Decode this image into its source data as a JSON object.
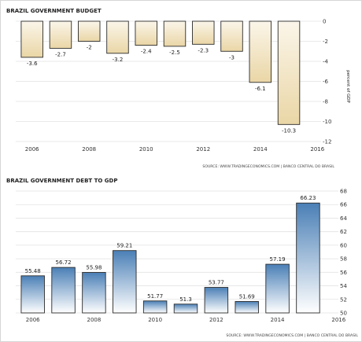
{
  "chart_data": [
    {
      "type": "bar",
      "title": "BRAZIL GOVERNMENT BUDGET",
      "ylabel": "percent of GDP",
      "source": "SOURCE: WWW.TRADINGECONOMICS.COM | BANCO CENTRAL DO BRASIL",
      "categories": [
        "2006",
        "2007",
        "2008",
        "2009",
        "2010",
        "2011",
        "2012",
        "2013",
        "2014",
        "2015"
      ],
      "values": [
        -3.6,
        -2.7,
        -2,
        -3.2,
        -2.4,
        -2.5,
        -2.3,
        -3,
        -6.1,
        -10.3
      ],
      "data_labels": [
        "-3.6",
        "-2.7",
        "-2",
        "-3.2",
        "-2.4",
        "-2.5",
        "-2.3",
        "-3",
        "-6.1",
        "-10.3"
      ],
      "x_ticks": [
        "2006",
        "2008",
        "2010",
        "2012",
        "2014",
        "2016"
      ],
      "y_ticks": [
        "0",
        "-2",
        "-4",
        "-6",
        "-8",
        "-10",
        "-12"
      ],
      "ylim": [
        -12,
        0
      ],
      "grid": true,
      "colors": {
        "bar_fill_top": "#fbf6ea",
        "bar_fill_bottom": "#ead6a6",
        "bar_stroke": "#2b2b2b"
      }
    },
    {
      "type": "bar",
      "title": "BRAZIL GOVERNMENT DEBT TO GDP",
      "source": "SOURCE: WWW.TRADINGECONOMICS.COM | BANCO CENTRAL DO BRASIL",
      "categories": [
        "2006",
        "2007",
        "2008",
        "2009",
        "2010",
        "2011",
        "2012",
        "2013",
        "2014",
        "2015"
      ],
      "values": [
        55.48,
        56.72,
        55.98,
        59.21,
        51.77,
        51.3,
        53.77,
        51.69,
        57.19,
        66.23
      ],
      "data_labels": [
        "55.48",
        "56.72",
        "55.98",
        "59.21",
        "51.77",
        "51.3",
        "53.77",
        "51.69",
        "57.19",
        "66.23"
      ],
      "x_ticks": [
        "2006",
        "2008",
        "2010",
        "2012",
        "2014",
        "2016"
      ],
      "y_ticks": [
        "50",
        "52",
        "54",
        "56",
        "58",
        "60",
        "62",
        "64",
        "66",
        "68"
      ],
      "ylim": [
        50,
        68
      ],
      "grid": true,
      "colors": {
        "bar_fill_top": "#4a7fb6",
        "bar_fill_bottom": "#ffffff",
        "bar_stroke": "#2b2b2b"
      }
    }
  ]
}
